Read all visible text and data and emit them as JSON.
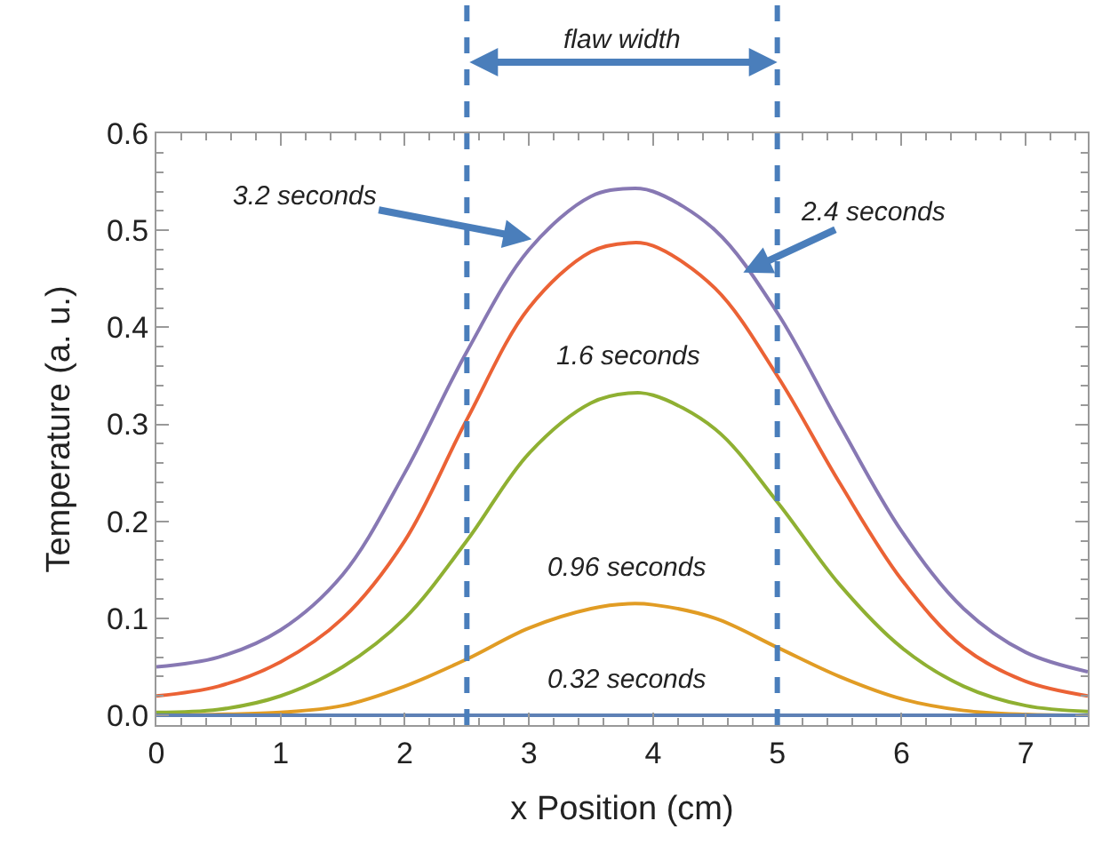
{
  "chart_data": {
    "type": "line",
    "xlabel": "x Position (cm)",
    "ylabel": "Temperature (a. u.)",
    "x": [
      0,
      0.5,
      1,
      1.5,
      2,
      2.5,
      3,
      3.5,
      3.8,
      4,
      4.5,
      5,
      5.5,
      6,
      6.5,
      7,
      7.5
    ],
    "series": [
      {
        "color": "#8778b3",
        "values": [
          0.05,
          0.06,
          0.088,
          0.145,
          0.25,
          0.375,
          0.48,
          0.535,
          0.543,
          0.54,
          0.5,
          0.415,
          0.3,
          0.19,
          0.11,
          0.065,
          0.045
        ]
      },
      {
        "color": "#eb6235",
        "values": [
          0.02,
          0.03,
          0.055,
          0.1,
          0.18,
          0.305,
          0.42,
          0.478,
          0.487,
          0.484,
          0.44,
          0.35,
          0.24,
          0.14,
          0.07,
          0.035,
          0.02
        ]
      },
      {
        "color": "#8fb032",
        "values": [
          0.003,
          0.006,
          0.02,
          0.05,
          0.1,
          0.18,
          0.27,
          0.322,
          0.332,
          0.33,
          0.295,
          0.22,
          0.135,
          0.07,
          0.03,
          0.01,
          0.004
        ]
      },
      {
        "color": "#e19c24",
        "values": [
          0,
          0.001,
          0.003,
          0.01,
          0.03,
          0.058,
          0.09,
          0.11,
          0.115,
          0.114,
          0.1,
          0.07,
          0.04,
          0.017,
          0.005,
          0.001,
          0
        ]
      },
      {
        "color": "#5e81b5",
        "values": [
          0,
          0,
          0,
          0,
          0,
          0,
          0,
          0,
          0,
          0,
          0,
          0,
          0,
          0,
          0,
          0,
          0
        ]
      }
    ],
    "xlim": [
      0,
      7.5
    ],
    "xticks": [
      0,
      1,
      2,
      3,
      4,
      5,
      6,
      7
    ],
    "ylim": [
      -0.01,
      0.6
    ],
    "yticks": [
      {
        "value": 0,
        "label": "0.0"
      },
      0.1,
      0.2,
      0.3,
      0.4,
      0.5,
      0.6
    ],
    "ref_lines": [
      {
        "axis": "x",
        "value": 2.5,
        "color": "#4a7ebb",
        "line_style": "dashed"
      },
      {
        "axis": "x",
        "value": 5,
        "color": "#4a7ebb",
        "line_style": "dashed"
      }
    ],
    "annotations": [
      "flaw width",
      {
        "text": "3.2 seconds",
        "x": 3.05,
        "y": 0.49
      },
      {
        "text": "2.4 seconds",
        "x": 4.7,
        "y": 0.455
      },
      {
        "text": "1.6 seconds",
        "x": 3.8,
        "y": 0.332
      },
      {
        "text": "0.96 seconds",
        "x": 3.8,
        "y": 0.115
      },
      {
        "text": "0.32 seconds",
        "x": 3.8,
        "y": 0
      }
    ]
  }
}
